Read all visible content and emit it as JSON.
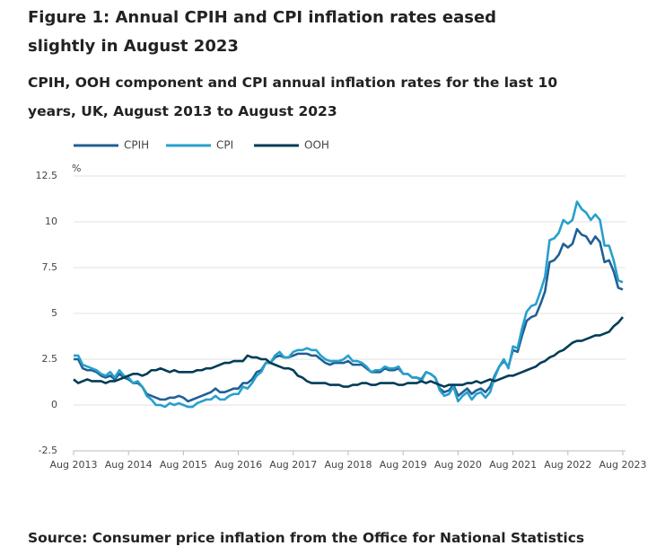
{
  "title": "Figure 1: Annual CPIH and CPI inflation rates eased slightly in August 2023",
  "subtitle": "CPIH, OOH component and CPI annual inflation rates for the last 10 years, UK, August 2013 to August 2023",
  "source": "Source: Consumer price inflation from the Office for National Statistics",
  "chart_data": {
    "type": "line",
    "y_label": "%",
    "categories": [
      "Aug 2013",
      null,
      null,
      null,
      null,
      null,
      null,
      null,
      null,
      null,
      null,
      null,
      "Aug 2014",
      null,
      null,
      null,
      null,
      null,
      null,
      null,
      null,
      null,
      null,
      null,
      "Aug 2015",
      null,
      null,
      null,
      null,
      null,
      null,
      null,
      null,
      null,
      null,
      null,
      "Aug 2016",
      null,
      null,
      null,
      null,
      null,
      null,
      null,
      null,
      null,
      null,
      null,
      "Aug 2017",
      null,
      null,
      null,
      null,
      null,
      null,
      null,
      null,
      null,
      null,
      null,
      "Aug 2018",
      null,
      null,
      null,
      null,
      null,
      null,
      null,
      null,
      null,
      null,
      null,
      "Aug 2019",
      null,
      null,
      null,
      null,
      null,
      null,
      null,
      null,
      null,
      null,
      null,
      "Aug 2020",
      null,
      null,
      null,
      null,
      null,
      null,
      null,
      null,
      null,
      null,
      null,
      "Aug 2021",
      null,
      null,
      null,
      null,
      null,
      null,
      null,
      null,
      null,
      null,
      null,
      "Aug 2022",
      null,
      null,
      null,
      null,
      null,
      null,
      null,
      null,
      null,
      null,
      null,
      "Aug 2023"
    ],
    "series": [
      {
        "name": "CPIH",
        "color": "#206095",
        "values": [
          2.5,
          2.5,
          2.0,
          1.9,
          1.9,
          1.8,
          1.6,
          1.5,
          1.6,
          1.4,
          1.7,
          1.5,
          1.4,
          1.2,
          1.2,
          1.0,
          0.6,
          0.5,
          0.4,
          0.3,
          0.3,
          0.4,
          0.4,
          0.5,
          0.4,
          0.2,
          0.3,
          0.4,
          0.5,
          0.6,
          0.7,
          0.9,
          0.7,
          0.7,
          0.8,
          0.9,
          0.9,
          1.2,
          1.2,
          1.4,
          1.8,
          1.9,
          2.3,
          2.3,
          2.6,
          2.7,
          2.6,
          2.6,
          2.7,
          2.8,
          2.8,
          2.8,
          2.7,
          2.7,
          2.5,
          2.3,
          2.2,
          2.3,
          2.3,
          2.3,
          2.4,
          2.2,
          2.2,
          2.2,
          2.0,
          1.8,
          1.8,
          1.8,
          2.0,
          1.9,
          1.9,
          2.0,
          1.7,
          1.7,
          1.5,
          1.5,
          1.4,
          1.8,
          1.7,
          1.5,
          0.9,
          0.7,
          0.8,
          1.1,
          0.5,
          0.7,
          0.9,
          0.6,
          0.8,
          0.9,
          0.7,
          1.0,
          1.6,
          2.1,
          2.4,
          2.1,
          3.0,
          2.9,
          3.8,
          4.6,
          4.8,
          4.9,
          5.5,
          6.2,
          7.8,
          7.9,
          8.2,
          8.8,
          8.6,
          8.8,
          9.6,
          9.3,
          9.2,
          8.8,
          9.2,
          8.9,
          7.8,
          7.9,
          7.3,
          6.4,
          6.3
        ]
      },
      {
        "name": "CPI",
        "color": "#27a0cc",
        "values": [
          2.7,
          2.7,
          2.2,
          2.1,
          2.0,
          1.9,
          1.7,
          1.6,
          1.8,
          1.5,
          1.9,
          1.6,
          1.5,
          1.2,
          1.3,
          1.0,
          0.5,
          0.3,
          0.0,
          0.0,
          -0.1,
          0.1,
          0.0,
          0.1,
          0.0,
          -0.1,
          -0.1,
          0.1,
          0.2,
          0.3,
          0.3,
          0.5,
          0.3,
          0.3,
          0.5,
          0.6,
          0.6,
          1.0,
          0.9,
          1.2,
          1.6,
          1.8,
          2.3,
          2.3,
          2.7,
          2.9,
          2.6,
          2.6,
          2.9,
          3.0,
          3.0,
          3.1,
          3.0,
          3.0,
          2.7,
          2.5,
          2.4,
          2.4,
          2.4,
          2.5,
          2.7,
          2.4,
          2.4,
          2.3,
          2.1,
          1.8,
          1.9,
          1.9,
          2.1,
          2.0,
          2.0,
          2.1,
          1.7,
          1.7,
          1.5,
          1.5,
          1.3,
          1.8,
          1.7,
          1.5,
          0.8,
          0.5,
          0.6,
          1.0,
          0.2,
          0.5,
          0.7,
          0.3,
          0.6,
          0.7,
          0.4,
          0.7,
          1.5,
          2.1,
          2.5,
          2.0,
          3.2,
          3.1,
          4.2,
          5.1,
          5.4,
          5.5,
          6.2,
          7.0,
          9.0,
          9.1,
          9.4,
          10.1,
          9.9,
          10.1,
          11.1,
          10.7,
          10.5,
          10.1,
          10.4,
          10.1,
          8.7,
          8.7,
          7.9,
          6.8,
          6.7
        ]
      },
      {
        "name": "OOH",
        "color": "#003c57",
        "values": [
          1.4,
          1.2,
          1.3,
          1.4,
          1.3,
          1.3,
          1.3,
          1.2,
          1.3,
          1.3,
          1.4,
          1.5,
          1.6,
          1.7,
          1.7,
          1.6,
          1.7,
          1.9,
          1.9,
          2.0,
          1.9,
          1.8,
          1.9,
          1.8,
          1.8,
          1.8,
          1.8,
          1.9,
          1.9,
          2.0,
          2.0,
          2.1,
          2.2,
          2.3,
          2.3,
          2.4,
          2.4,
          2.4,
          2.7,
          2.6,
          2.6,
          2.5,
          2.5,
          2.3,
          2.2,
          2.1,
          2.0,
          2.0,
          1.9,
          1.6,
          1.5,
          1.3,
          1.2,
          1.2,
          1.2,
          1.2,
          1.1,
          1.1,
          1.1,
          1.0,
          1.0,
          1.1,
          1.1,
          1.2,
          1.2,
          1.1,
          1.1,
          1.2,
          1.2,
          1.2,
          1.2,
          1.1,
          1.1,
          1.2,
          1.2,
          1.2,
          1.3,
          1.2,
          1.3,
          1.2,
          1.1,
          1.0,
          1.1,
          1.1,
          1.1,
          1.1,
          1.2,
          1.2,
          1.3,
          1.2,
          1.3,
          1.4,
          1.3,
          1.4,
          1.5,
          1.6,
          1.6,
          1.7,
          1.8,
          1.9,
          2.0,
          2.1,
          2.3,
          2.4,
          2.6,
          2.7,
          2.9,
          3.0,
          3.2,
          3.4,
          3.5,
          3.5,
          3.6,
          3.7,
          3.8,
          3.8,
          3.9,
          4.0,
          4.3,
          4.5,
          4.8
        ]
      }
    ],
    "ylim": [
      -2.5,
      12.5
    ],
    "yticks": [
      -2.5,
      0,
      2.5,
      5,
      7.5,
      10,
      12.5
    ],
    "grid": true
  }
}
